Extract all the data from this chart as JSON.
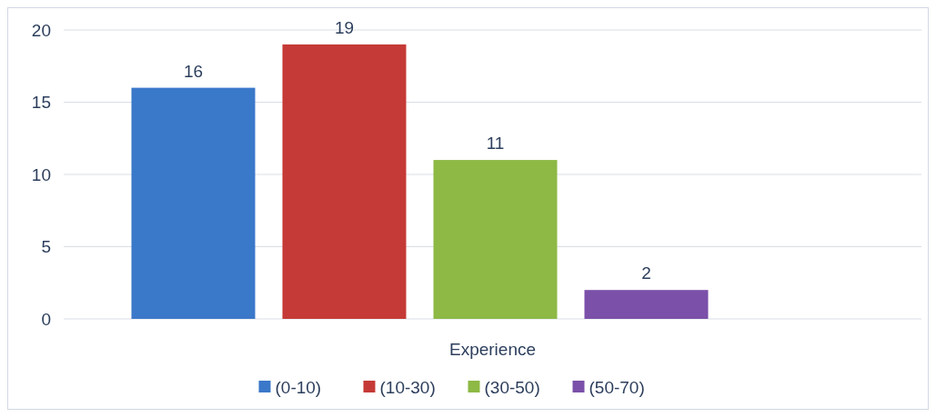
{
  "chart_data": {
    "type": "bar",
    "categories": [
      "Experience"
    ],
    "series": [
      {
        "name": "(0-10)",
        "color": "#3a78c9",
        "values": [
          16
        ]
      },
      {
        "name": "(10-30)",
        "color": "#c53a36",
        "values": [
          19
        ]
      },
      {
        "name": "(30-50)",
        "color": "#8db944",
        "values": [
          11
        ]
      },
      {
        "name": "(50-70)",
        "color": "#7a50a8",
        "values": [
          2
        ]
      }
    ],
    "ylim": [
      0,
      20
    ],
    "yticks": [
      0,
      5,
      10,
      15,
      20
    ],
    "grid": "y",
    "legend": "bottom",
    "data_labels": true
  }
}
